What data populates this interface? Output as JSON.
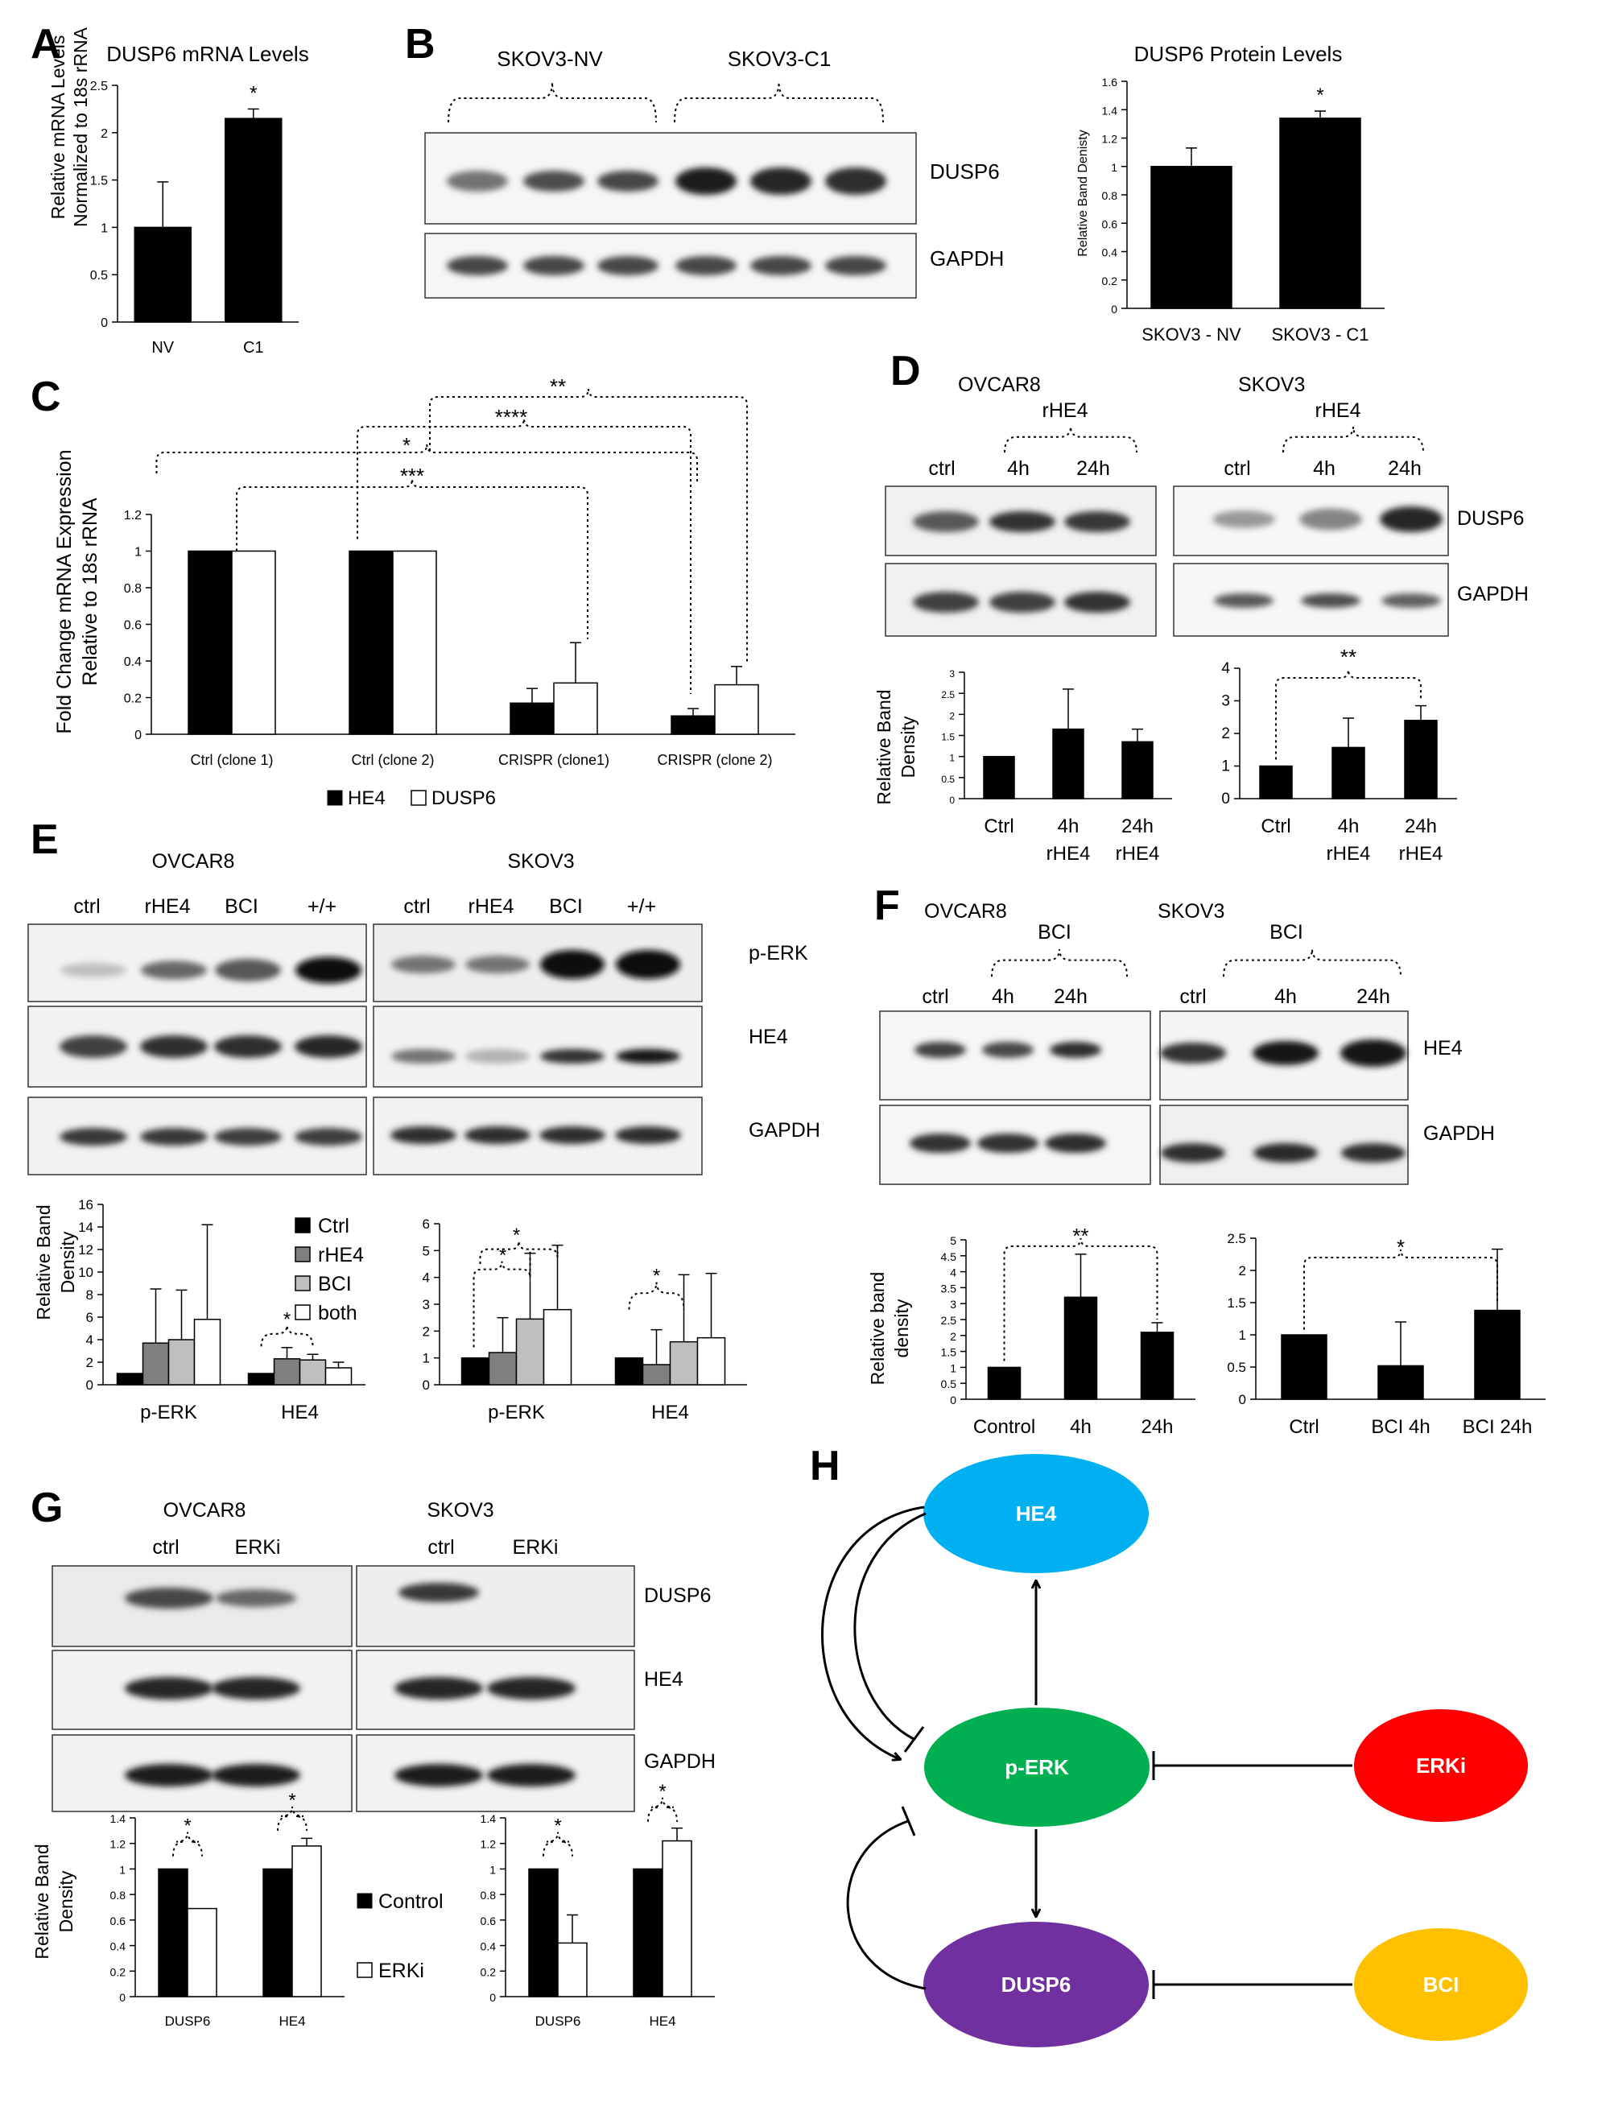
{
  "panels": {
    "A": {
      "letter": "A",
      "title": "DUSP6 mRNA Levels",
      "ylabel_lines": [
        "Relative mRNA Levels",
        "Normalized to 18s rRNA"
      ],
      "ylim": [
        0,
        2.5
      ],
      "yticks": [
        "0",
        "0.5",
        "1",
        "1.5",
        "2",
        "2.5"
      ],
      "categories": [
        "NV",
        "C1"
      ],
      "values": [
        1.0,
        2.15
      ],
      "errors": [
        0.48,
        0.1
      ],
      "sig": [
        "",
        "*"
      ]
    },
    "B": {
      "letter": "B",
      "group_labels": [
        "SKOV3-NV",
        "SKOV3-C1"
      ],
      "blot_labels": [
        "DUSP6",
        "GAPDH"
      ],
      "chart_title": "DUSP6 Protein Levels",
      "ylabel": "Relative Band Denisty",
      "ylim": [
        0,
        1.6
      ],
      "yticks": [
        "0",
        "0.2",
        "0.4",
        "0.6",
        "0.8",
        "1",
        "1.2",
        "1.4",
        "1.6"
      ],
      "categories": [
        "SKOV3 - NV",
        "SKOV3 - C1"
      ],
      "values": [
        1.0,
        1.34
      ],
      "errors": [
        0.13,
        0.05
      ],
      "sig": [
        "",
        "*"
      ]
    },
    "C": {
      "letter": "C",
      "ylabel_lines": [
        "Fold Change mRNA Expression",
        "Relative to 18s rRNA"
      ],
      "ylim": [
        0,
        1.2
      ],
      "yticks": [
        "0",
        "0.2",
        "0.4",
        "0.6",
        "0.8",
        "1",
        "1.2"
      ],
      "categories": [
        "Ctrl (clone 1)",
        "Ctrl (clone 2)",
        "CRISPR (clone1)",
        "CRISPR (clone 2)"
      ],
      "series": [
        {
          "name": "HE4",
          "values": [
            1.0,
            1.0,
            0.17,
            0.1
          ],
          "errors": [
            0,
            0,
            0.08,
            0.04
          ]
        },
        {
          "name": "DUSP6",
          "values": [
            1.0,
            1.0,
            0.28,
            0.27
          ],
          "errors": [
            0,
            0,
            0.22,
            0.1
          ]
        }
      ],
      "brackets": [
        "***",
        "*",
        "****",
        "**"
      ]
    },
    "D": {
      "letter": "D",
      "cell_lines": [
        "OVCAR8",
        "SKOV3"
      ],
      "treatment": "rHE4",
      "lanes": [
        "ctrl",
        "4h",
        "24h"
      ],
      "blot_labels": [
        "DUSP6",
        "GAPDH"
      ],
      "ylabel_lines": [
        "Relative Band",
        "Density"
      ],
      "left": {
        "ylim": [
          0,
          3
        ],
        "yticks": [
          "0",
          "0.5",
          "1",
          "1.5",
          "2",
          "2.5",
          "3"
        ],
        "categories": [
          "Ctrl",
          "4h rHE4",
          "24h rHE4"
        ],
        "values": [
          1.0,
          1.65,
          1.35
        ],
        "errors": [
          0,
          0.95,
          0.3
        ]
      },
      "right": {
        "ylim": [
          0,
          4
        ],
        "yticks": [
          "0",
          "1",
          "2",
          "3",
          "4"
        ],
        "categories": [
          "Ctrl",
          "4h rHE4",
          "24h rHE4"
        ],
        "values": [
          1.0,
          1.57,
          2.4
        ],
        "errors": [
          0,
          0.9,
          0.45
        ],
        "sig": "**"
      }
    },
    "E": {
      "letter": "E",
      "cell_lines": [
        "OVCAR8",
        "SKOV3"
      ],
      "lanes": [
        "ctrl",
        "rHE4",
        "BCI",
        "+/+"
      ],
      "blot_labels": [
        "p-ERK",
        "HE4",
        "GAPDH"
      ],
      "ylabel_lines": [
        "Relative Band",
        "Density"
      ],
      "legend": [
        "Ctrl",
        "rHE4",
        "BCI",
        "both"
      ],
      "colors": [
        "#000000",
        "#7f7f7f",
        "#bfbfbf",
        "#ffffff"
      ],
      "left": {
        "ylim": [
          0,
          16
        ],
        "yticks": [
          "0",
          "2",
          "4",
          "6",
          "8",
          "10",
          "12",
          "14",
          "16"
        ],
        "categories": [
          "p-ERK",
          "HE4"
        ],
        "values": [
          [
            1.0,
            3.7,
            4.0,
            5.8
          ],
          [
            1.0,
            2.3,
            2.2,
            1.5
          ]
        ],
        "errors": [
          [
            0,
            4.8,
            4.4,
            8.4
          ],
          [
            0,
            1.0,
            0.5,
            0.5
          ]
        ],
        "sig": "*"
      },
      "right": {
        "ylim": [
          0,
          6
        ],
        "yticks": [
          "0",
          "1",
          "2",
          "3",
          "4",
          "5",
          "6"
        ],
        "categories": [
          "p-ERK",
          "HE4"
        ],
        "values": [
          [
            1.0,
            1.2,
            2.45,
            2.8
          ],
          [
            1.0,
            0.75,
            1.6,
            1.75
          ]
        ],
        "errors": [
          [
            0,
            1.3,
            2.45,
            2.4
          ],
          [
            0,
            1.3,
            2.5,
            2.4
          ]
        ],
        "sig": "*"
      }
    },
    "F": {
      "letter": "F",
      "cell_lines": [
        "OVCAR8",
        "SKOV3"
      ],
      "treatment": "BCI",
      "lanes": [
        "ctrl",
        "4h",
        "24h"
      ],
      "blot_labels": [
        "HE4",
        "GAPDH"
      ],
      "ylabel_lines": [
        "Relative band",
        "density"
      ],
      "left": {
        "ylim": [
          0,
          5
        ],
        "yticks": [
          "0",
          "0.5",
          "1",
          "1.5",
          "2",
          "2.5",
          "3",
          "3.5",
          "4",
          "4.5",
          "5"
        ],
        "categories": [
          "Control",
          "4h",
          "24h"
        ],
        "values": [
          1.0,
          3.2,
          2.1
        ],
        "errors": [
          0,
          1.35,
          0.3
        ],
        "sig": "**"
      },
      "right": {
        "ylim": [
          0,
          2.5
        ],
        "yticks": [
          "0",
          "0.5",
          "1",
          "1.5",
          "2",
          "2.5"
        ],
        "categories": [
          "Ctrl",
          "BCI 4h",
          "BCI 24h"
        ],
        "values": [
          1.0,
          0.52,
          1.38
        ],
        "errors": [
          0,
          0.68,
          0.95
        ],
        "sig": "*"
      }
    },
    "G": {
      "letter": "G",
      "cell_lines": [
        "OVCAR8",
        "SKOV3"
      ],
      "lanes": [
        "ctrl",
        "ERKi"
      ],
      "blot_labels": [
        "DUSP6",
        "HE4",
        "GAPDH"
      ],
      "ylabel_lines": [
        "Relative Band",
        "Density"
      ],
      "legend": [
        "Control",
        "ERKi"
      ],
      "left": {
        "ylim": [
          0,
          1.4
        ],
        "yticks": [
          "0",
          "0.2",
          "0.4",
          "0.6",
          "0.8",
          "1",
          "1.2",
          "1.4"
        ],
        "categories": [
          "DUSP6",
          "HE4"
        ],
        "values": [
          [
            1.0,
            0.69
          ],
          [
            1.0,
            1.18
          ]
        ],
        "errors": [
          [
            0,
            0
          ],
          [
            0,
            0.06
          ]
        ],
        "sig": [
          "*",
          "*"
        ]
      },
      "right": {
        "ylim": [
          0,
          1.4
        ],
        "yticks": [
          "0",
          "0.2",
          "0.4",
          "0.6",
          "0.8",
          "1",
          "1.2",
          "1.4"
        ],
        "categories": [
          "DUSP6",
          "HE4"
        ],
        "values": [
          [
            1.0,
            0.42
          ],
          [
            1.0,
            1.22
          ]
        ],
        "errors": [
          [
            0,
            0.22
          ],
          [
            0,
            0.1
          ]
        ],
        "sig": [
          "*",
          "*"
        ]
      }
    },
    "H": {
      "letter": "H",
      "nodes": [
        {
          "label": "HE4",
          "color": "#00b0f0"
        },
        {
          "label": "p-ERK",
          "color": "#00b050"
        },
        {
          "label": "ERKi",
          "color": "#ff0000"
        },
        {
          "label": "DUSP6",
          "color": "#7030a0"
        },
        {
          "label": "BCI",
          "color": "#ffc000"
        }
      ]
    }
  },
  "chart_data": [
    {
      "type": "bar",
      "title": "DUSP6 mRNA Levels",
      "ylabel": "Relative mRNA Levels Normalized to 18s rRNA",
      "categories": [
        "NV",
        "C1"
      ],
      "values": [
        1.0,
        2.15
      ],
      "ylim": [
        0,
        2.5
      ]
    },
    {
      "type": "bar",
      "title": "DUSP6 Protein Levels",
      "ylabel": "Relative Band Denisty",
      "categories": [
        "SKOV3 - NV",
        "SKOV3 - C1"
      ],
      "values": [
        1.0,
        1.34
      ],
      "ylim": [
        0,
        1.6
      ]
    },
    {
      "type": "bar",
      "ylabel": "Fold Change mRNA Expression Relative to 18s rRNA",
      "categories": [
        "Ctrl (clone 1)",
        "Ctrl (clone 2)",
        "CRISPR (clone1)",
        "CRISPR (clone 2)"
      ],
      "series": [
        {
          "name": "HE4",
          "values": [
            1.0,
            1.0,
            0.17,
            0.1
          ]
        },
        {
          "name": "DUSP6",
          "values": [
            1.0,
            1.0,
            0.28,
            0.27
          ]
        }
      ],
      "ylim": [
        0,
        1.2
      ]
    },
    {
      "type": "bar",
      "ylabel": "Relative Band Density",
      "categories": [
        "Ctrl",
        "4h rHE4",
        "24h rHE4"
      ],
      "values": [
        1.0,
        1.65,
        1.35
      ],
      "ylim": [
        0,
        3
      ]
    },
    {
      "type": "bar",
      "categories": [
        "Ctrl",
        "4h rHE4",
        "24h rHE4"
      ],
      "values": [
        1.0,
        1.57,
        2.4
      ],
      "ylim": [
        0,
        4
      ]
    },
    {
      "type": "bar",
      "ylabel": "Relative Band Density",
      "categories": [
        "p-ERK",
        "HE4"
      ],
      "series": [
        {
          "name": "Ctrl",
          "values": [
            1.0,
            1.0
          ]
        },
        {
          "name": "rHE4",
          "values": [
            3.7,
            2.3
          ]
        },
        {
          "name": "BCI",
          "values": [
            4.0,
            2.2
          ]
        },
        {
          "name": "both",
          "values": [
            5.8,
            1.5
          ]
        }
      ],
      "ylim": [
        0,
        16
      ]
    },
    {
      "type": "bar",
      "categories": [
        "p-ERK",
        "HE4"
      ],
      "series": [
        {
          "name": "Ctrl",
          "values": [
            1.0,
            1.0
          ]
        },
        {
          "name": "rHE4",
          "values": [
            1.2,
            0.75
          ]
        },
        {
          "name": "BCI",
          "values": [
            2.45,
            1.6
          ]
        },
        {
          "name": "both",
          "values": [
            2.8,
            1.75
          ]
        }
      ],
      "ylim": [
        0,
        6
      ]
    },
    {
      "type": "bar",
      "ylabel": "Relative band density",
      "categories": [
        "Control",
        "4h",
        "24h"
      ],
      "values": [
        1.0,
        3.2,
        2.1
      ],
      "ylim": [
        0,
        5
      ]
    },
    {
      "type": "bar",
      "categories": [
        "Ctrl",
        "BCI 4h",
        "BCI 24h"
      ],
      "values": [
        1.0,
        0.52,
        1.38
      ],
      "ylim": [
        0,
        2.5
      ]
    },
    {
      "type": "bar",
      "ylabel": "Relative Band Density",
      "categories": [
        "DUSP6",
        "HE4"
      ],
      "series": [
        {
          "name": "Control",
          "values": [
            1.0,
            1.0
          ]
        },
        {
          "name": "ERKi",
          "values": [
            0.69,
            1.18
          ]
        }
      ],
      "ylim": [
        0,
        1.4
      ]
    },
    {
      "type": "bar",
      "categories": [
        "DUSP6",
        "HE4"
      ],
      "series": [
        {
          "name": "Control",
          "values": [
            1.0,
            1.0
          ]
        },
        {
          "name": "ERKi",
          "values": [
            0.42,
            1.22
          ]
        }
      ],
      "ylim": [
        0,
        1.4
      ]
    }
  ]
}
